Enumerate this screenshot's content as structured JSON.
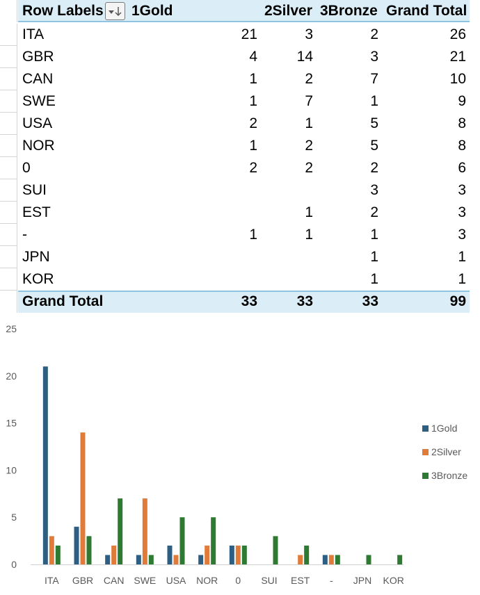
{
  "pivot": {
    "headers": [
      "Row Labels",
      "1Gold",
      "2Silver",
      "3Bronze",
      "Grand Total"
    ],
    "rows": [
      {
        "label": "ITA",
        "gold": "21",
        "silver": "3",
        "bronze": "2",
        "total": "26"
      },
      {
        "label": "GBR",
        "gold": "4",
        "silver": "14",
        "bronze": "3",
        "total": "21"
      },
      {
        "label": "CAN",
        "gold": "1",
        "silver": "2",
        "bronze": "7",
        "total": "10"
      },
      {
        "label": "SWE",
        "gold": "1",
        "silver": "7",
        "bronze": "1",
        "total": "9"
      },
      {
        "label": "USA",
        "gold": "2",
        "silver": "1",
        "bronze": "5",
        "total": "8"
      },
      {
        "label": "NOR",
        "gold": "1",
        "silver": "2",
        "bronze": "5",
        "total": "8"
      },
      {
        "label": "0",
        "gold": "2",
        "silver": "2",
        "bronze": "2",
        "total": "6"
      },
      {
        "label": "SUI",
        "gold": "",
        "silver": "",
        "bronze": "3",
        "total": "3"
      },
      {
        "label": "EST",
        "gold": "",
        "silver": "1",
        "bronze": "2",
        "total": "3"
      },
      {
        "label": "-",
        "gold": "1",
        "silver": "1",
        "bronze": "1",
        "total": "3"
      },
      {
        "label": "JPN",
        "gold": "",
        "silver": "",
        "bronze": "1",
        "total": "1"
      },
      {
        "label": "KOR",
        "gold": "",
        "silver": "",
        "bronze": "1",
        "total": "1"
      }
    ],
    "grand_total": {
      "label": "Grand Total",
      "gold": "33",
      "silver": "33",
      "bronze": "33",
      "total": "99"
    },
    "filter_icon": "sort-filter-icon"
  },
  "chart_data": {
    "type": "bar",
    "categories": [
      "ITA",
      "GBR",
      "CAN",
      "SWE",
      "USA",
      "NOR",
      "0",
      "SUI",
      "EST",
      "-",
      "JPN",
      "KOR"
    ],
    "series": [
      {
        "name": "1Gold",
        "color": "#2e5f82",
        "values": [
          21,
          4,
          1,
          1,
          2,
          1,
          2,
          0,
          0,
          1,
          0,
          0
        ]
      },
      {
        "name": "2Silver",
        "color": "#e07b39",
        "values": [
          3,
          14,
          2,
          7,
          1,
          2,
          2,
          0,
          1,
          1,
          0,
          0
        ]
      },
      {
        "name": "3Bronze",
        "color": "#2e7a32",
        "values": [
          2,
          3,
          7,
          1,
          5,
          5,
          2,
          3,
          2,
          1,
          1,
          1
        ]
      }
    ],
    "ylim": [
      0,
      25
    ],
    "yticks": [
      0,
      5,
      10,
      15,
      20,
      25
    ],
    "grid": false,
    "legend": "right"
  }
}
